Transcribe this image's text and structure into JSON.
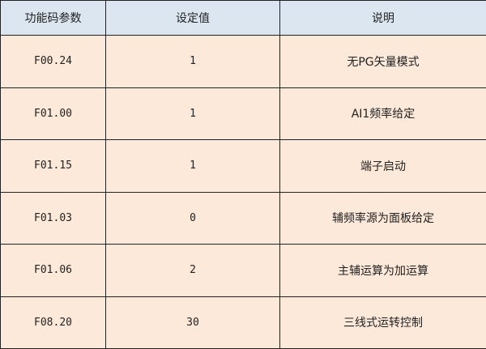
{
  "headers": [
    "功能码参数",
    "设定值",
    "说明"
  ],
  "rows": [
    [
      "F00.24",
      "1",
      "无PG矢量模式"
    ],
    [
      "F01.00",
      "1",
      "AI1频率给定"
    ],
    [
      "F01.15",
      "1",
      "端子启动"
    ],
    [
      "F01.03",
      "0",
      "辅频率源为面板给定"
    ],
    [
      "F01.06",
      "2",
      "主辅运算为加运算"
    ],
    [
      "F08.20",
      "30",
      "三线式运转控制"
    ]
  ],
  "colors": {
    "header_bg": "#dce6f1",
    "row_bg": "#fde9d9",
    "border": "#222222"
  }
}
